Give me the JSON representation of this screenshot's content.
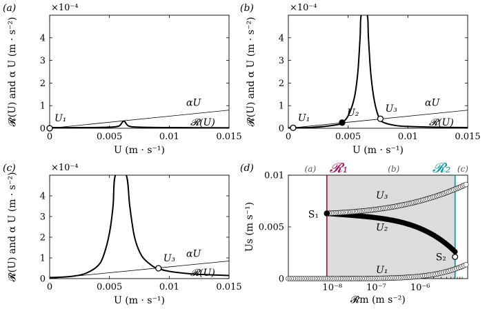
{
  "chart_data": [
    {
      "id": "a",
      "type": "line",
      "panel_label": "(a)",
      "exponent_label": "×10⁻⁴",
      "xlabel": "U  (m · s⁻¹)",
      "ylabel": "𝓡(U) and α U  (m · s⁻²)",
      "xlim": [
        0,
        0.015
      ],
      "ylim": [
        0,
        5
      ],
      "x_ticks": [
        0,
        0.005,
        0.01,
        0.015
      ],
      "x_tick_labels": [
        "0",
        "0.005",
        "0.01",
        "0.015"
      ],
      "y_ticks": [
        0,
        1,
        2,
        3,
        4
      ],
      "y_tick_labels": [
        "0",
        "1",
        "2",
        "3",
        "4"
      ],
      "line_label": "αU",
      "curve_label": "𝓡(U)",
      "alphaU": [
        [
          0,
          0
        ],
        [
          0.015,
          0.8
        ]
      ],
      "R_curve": [
        [
          0,
          0.03
        ],
        [
          0.003,
          0.03
        ],
        [
          0.005,
          0.05
        ],
        [
          0.0058,
          0.1
        ],
        [
          0.0062,
          0.32
        ],
        [
          0.0066,
          0.1
        ],
        [
          0.0075,
          0.05
        ],
        [
          0.01,
          0.03
        ],
        [
          0.015,
          0.02
        ]
      ],
      "points": [
        {
          "label": "U₁",
          "x": 0,
          "y": 0,
          "filled": false
        }
      ]
    },
    {
      "id": "b",
      "type": "line",
      "panel_label": "(b)",
      "exponent_label": "×10⁻⁴",
      "xlabel": "U  (m · s⁻¹)",
      "ylabel": "𝓡(U) and α U  (m · s⁻²)",
      "xlim": [
        0,
        0.015
      ],
      "ylim": [
        0,
        5
      ],
      "x_ticks": [
        0,
        0.005,
        0.01,
        0.015
      ],
      "x_tick_labels": [
        "0",
        "0.005",
        "0.01",
        "0.015"
      ],
      "y_ticks": [
        0,
        1,
        2,
        3,
        4
      ],
      "y_tick_labels": [
        "0",
        "1",
        "2",
        "3",
        "4"
      ],
      "line_label": "αU",
      "curve_label": "𝓡(U)",
      "alphaU": [
        [
          0,
          0
        ],
        [
          0.015,
          0.8
        ]
      ],
      "R_curve": [
        [
          0,
          0.02
        ],
        [
          0.002,
          0.04
        ],
        [
          0.004,
          0.15
        ],
        [
          0.0045,
          0.25
        ],
        [
          0.005,
          0.55
        ],
        [
          0.0055,
          1.3
        ],
        [
          0.0058,
          2.4
        ],
        [
          0.006,
          4.0
        ],
        [
          0.0061,
          5.0
        ],
        [
          0.0066,
          5.0
        ],
        [
          0.0067,
          4.0
        ],
        [
          0.0069,
          2.4
        ],
        [
          0.0072,
          1.2
        ],
        [
          0.0076,
          0.45
        ],
        [
          0.008,
          0.25
        ],
        [
          0.009,
          0.12
        ],
        [
          0.01,
          0.08
        ],
        [
          0.012,
          0.05
        ],
        [
          0.015,
          0.03
        ]
      ],
      "points": [
        {
          "label": "U₁",
          "x": 0.0004,
          "y": 0.02,
          "filled": false
        },
        {
          "label": "U₂",
          "x": 0.0045,
          "y": 0.25,
          "filled": true
        },
        {
          "label": "U₃",
          "x": 0.0077,
          "y": 0.42,
          "filled": false
        }
      ]
    },
    {
      "id": "c",
      "type": "line",
      "panel_label": "(c)",
      "exponent_label": "×10⁻⁴",
      "xlabel": "U  (m · s⁻¹)",
      "ylabel": "𝓡(U) and α U  (m · s⁻²)",
      "xlim": [
        0,
        0.015
      ],
      "ylim": [
        0,
        5
      ],
      "x_ticks": [
        0,
        0.005,
        0.01,
        0.015
      ],
      "x_tick_labels": [
        "0",
        "0.005",
        "0.01",
        "0.015"
      ],
      "y_ticks": [
        0,
        1,
        2,
        3,
        4
      ],
      "y_tick_labels": [
        "0",
        "1",
        "2",
        "3",
        "4"
      ],
      "line_label": "αU",
      "curve_label": "𝓡(U)",
      "alphaU": [
        [
          0,
          0
        ],
        [
          0.015,
          0.85
        ]
      ],
      "R_curve": [
        [
          0,
          0.05
        ],
        [
          0.001,
          0.07
        ],
        [
          0.002,
          0.12
        ],
        [
          0.003,
          0.25
        ],
        [
          0.004,
          0.6
        ],
        [
          0.0045,
          1.1
        ],
        [
          0.005,
          2.2
        ],
        [
          0.0053,
          3.5
        ],
        [
          0.0055,
          5.0
        ],
        [
          0.0064,
          5.0
        ],
        [
          0.0067,
          3.5
        ],
        [
          0.0071,
          2.0
        ],
        [
          0.0077,
          1.1
        ],
        [
          0.0085,
          0.65
        ],
        [
          0.009,
          0.5
        ],
        [
          0.01,
          0.35
        ],
        [
          0.012,
          0.22
        ],
        [
          0.015,
          0.15
        ]
      ],
      "points": [
        {
          "label": "U₃",
          "x": 0.0091,
          "y": 0.5,
          "filled": false
        }
      ]
    },
    {
      "id": "d",
      "type": "scatter",
      "panel_label": "(d)",
      "xlabel": "𝓡m  (m s⁻²)",
      "ylabel": "Us  (m s⁻¹)",
      "xscale": "log",
      "xlim": [
        1e-09,
        1.2e-05
      ],
      "ylim": [
        0,
        0.01
      ],
      "x_ticks": [
        1e-08,
        1e-07,
        1e-06
      ],
      "x_tick_labels": [
        "10⁻⁸",
        "10⁻⁷",
        "10⁻⁶"
      ],
      "y_ticks": [
        0,
        0.005,
        0.01
      ],
      "y_tick_labels": [
        "0",
        "0.005",
        "0.01"
      ],
      "bounds": {
        "R1": 7.5e-09,
        "R2": 6.2e-06
      },
      "R1_label": "𝓡₁",
      "R2_label": "𝓡₂",
      "R1_color": "#a0185a",
      "R2_color": "#1a9aa0",
      "shade_color": "#dcdcdc",
      "region_labels": [
        "(a)",
        "(b)",
        "(c)"
      ],
      "branch_labels": [
        "U₁",
        "U₂",
        "U₃"
      ],
      "saddle_labels": [
        "S₁",
        "S₂"
      ],
      "series": [
        {
          "name": "U1",
          "filled": false,
          "x_range": [
            1e-09,
            1.1e-05
          ],
          "y_start": 0.0,
          "y_end": 0.00135,
          "shape": "u1"
        },
        {
          "name": "U2",
          "filled": true,
          "x_range": [
            7.5e-09,
            6.2e-06
          ],
          "y_start": 0.0063,
          "y_end": 0.0026,
          "shape": "u2"
        },
        {
          "name": "U3",
          "filled": false,
          "x_range": [
            7.5e-09,
            1.1e-05
          ],
          "y_start": 0.0063,
          "y_end": 0.0091,
          "shape": "u3"
        }
      ]
    }
  ]
}
